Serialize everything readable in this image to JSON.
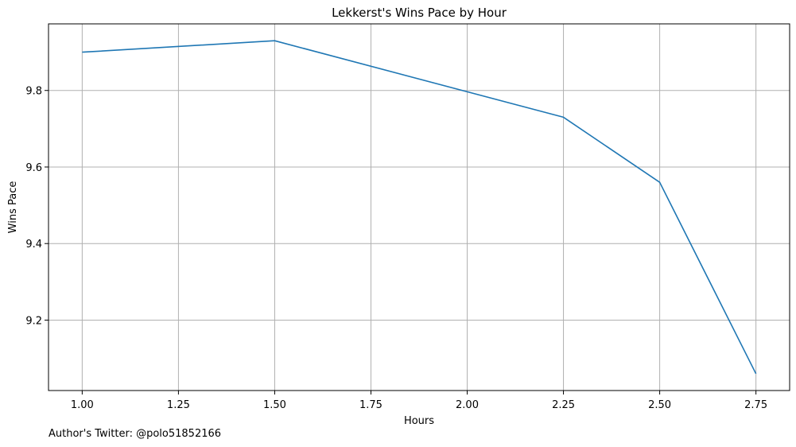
{
  "chart_data": {
    "type": "line",
    "title": "Lekkerst's Wins Pace by Hour",
    "xlabel": "Hours",
    "ylabel": "Wins Pace",
    "x": [
      1.0,
      1.5,
      2.25,
      2.5,
      2.75
    ],
    "series": [
      {
        "values": [
          9.9,
          9.93,
          9.73,
          9.56,
          9.06
        ],
        "color": "#1f77b4"
      }
    ],
    "xlim": [
      0.9125,
      2.8375
    ],
    "ylim": [
      9.016,
      9.974
    ],
    "xticks": [
      "1.00",
      "1.25",
      "1.50",
      "1.75",
      "2.00",
      "2.25",
      "2.50",
      "2.75"
    ],
    "yticks": [
      "9.2",
      "9.4",
      "9.6",
      "9.8"
    ],
    "grid": true,
    "grid_color": "#b0b0b0"
  },
  "footer": {
    "author": "Author's Twitter: @polo51852166"
  }
}
